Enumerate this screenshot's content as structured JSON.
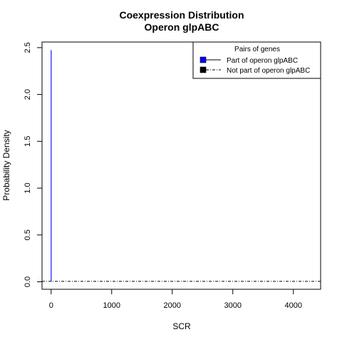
{
  "chart_data": {
    "type": "line",
    "title": "Coexpression Distribution",
    "subtitle": "Operon glpABC",
    "xlabel": "SCR",
    "ylabel": "Probability Density",
    "xlim": [
      -150,
      4450
    ],
    "ylim": [
      -0.08,
      2.56
    ],
    "x_ticks": [
      0,
      1000,
      2000,
      3000,
      4000
    ],
    "x_tick_labels": [
      "0",
      "1000",
      "2000",
      "3000",
      "4000"
    ],
    "y_ticks": [
      0.0,
      0.5,
      1.0,
      1.5,
      2.0,
      2.5
    ],
    "y_tick_labels": [
      "0.0",
      "0.5",
      "1.0",
      "1.5",
      "2.0",
      "2.5"
    ],
    "grid": false,
    "legend": {
      "title": "Pairs of genes",
      "placement": "top-right",
      "entries": [
        {
          "label": "Part of operon glpABC",
          "color": "#0000ff",
          "line_style": "solid"
        },
        {
          "label": "Not part of operon glpABC",
          "color": "#000000",
          "line_style": "dashdot"
        }
      ]
    },
    "series": [
      {
        "name": "Part of operon glpABC",
        "color": "#0000ff",
        "style": "solid",
        "x": [
          0,
          0,
          1,
          1
        ],
        "y": [
          0,
          2.47,
          2.47,
          0
        ]
      },
      {
        "name": "Not part of operon glpABC",
        "color": "#000000",
        "style": "dashdot",
        "x": [
          -150,
          4450
        ],
        "y": [
          0.005,
          0.005
        ]
      }
    ]
  }
}
